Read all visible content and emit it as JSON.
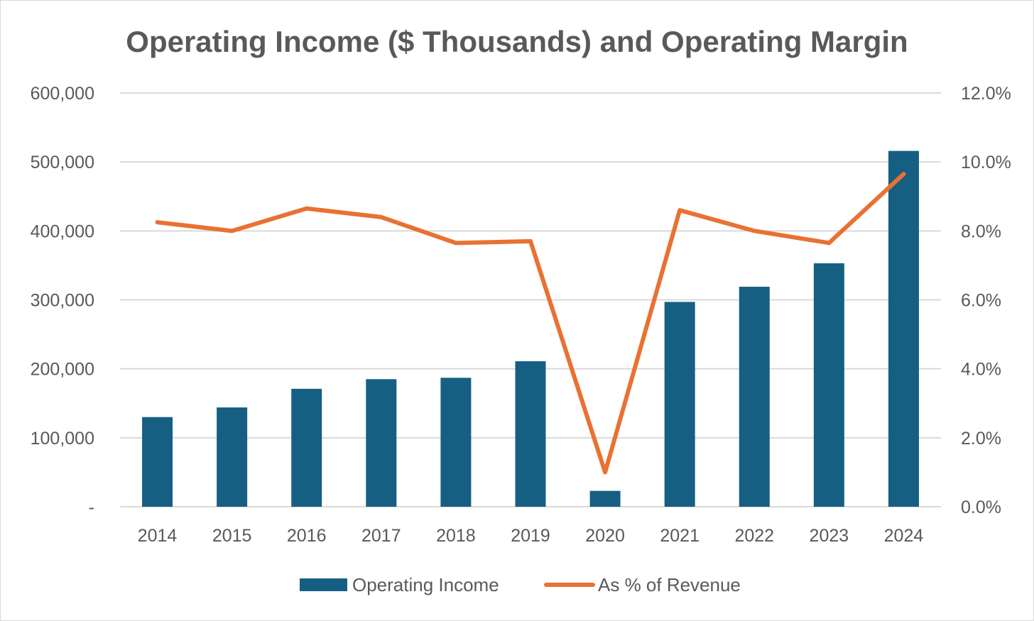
{
  "chart_data": {
    "type": "bar",
    "title": "Operating Income ($ Thousands) and Operating Margin",
    "categories": [
      "2014",
      "2015",
      "2016",
      "2017",
      "2018",
      "2019",
      "2020",
      "2021",
      "2022",
      "2023",
      "2024"
    ],
    "series": [
      {
        "name": "Operating Income",
        "type": "bar",
        "axis": "left",
        "color": "#156082",
        "values": [
          130000,
          144000,
          171000,
          185000,
          187000,
          211000,
          23000,
          297000,
          319000,
          353000,
          516000
        ]
      },
      {
        "name": "As % of Revenue",
        "type": "line",
        "axis": "right",
        "color": "#E97132",
        "values": [
          8.25,
          8.0,
          8.65,
          8.4,
          7.65,
          7.7,
          1.0,
          8.6,
          8.0,
          7.65,
          9.65
        ]
      }
    ],
    "left_axis": {
      "min": 0,
      "max": 600000,
      "ticks": [
        0,
        100000,
        200000,
        300000,
        400000,
        500000,
        600000
      ],
      "tick_labels": [
        "-",
        "100,000",
        "200,000",
        "300,000",
        "400,000",
        "500,000",
        "600,000"
      ]
    },
    "right_axis": {
      "min": 0,
      "max": 12,
      "ticks": [
        0,
        2,
        4,
        6,
        8,
        10,
        12
      ],
      "tick_labels": [
        "0.0%",
        "2.0%",
        "4.0%",
        "6.0%",
        "8.0%",
        "10.0%",
        "12.0%"
      ]
    },
    "grid": true,
    "legend_position": "bottom",
    "colors": {
      "bar": "#156082",
      "line": "#E97132",
      "grid": "#d9d9d9",
      "text": "#595959",
      "title": "#595959"
    }
  }
}
